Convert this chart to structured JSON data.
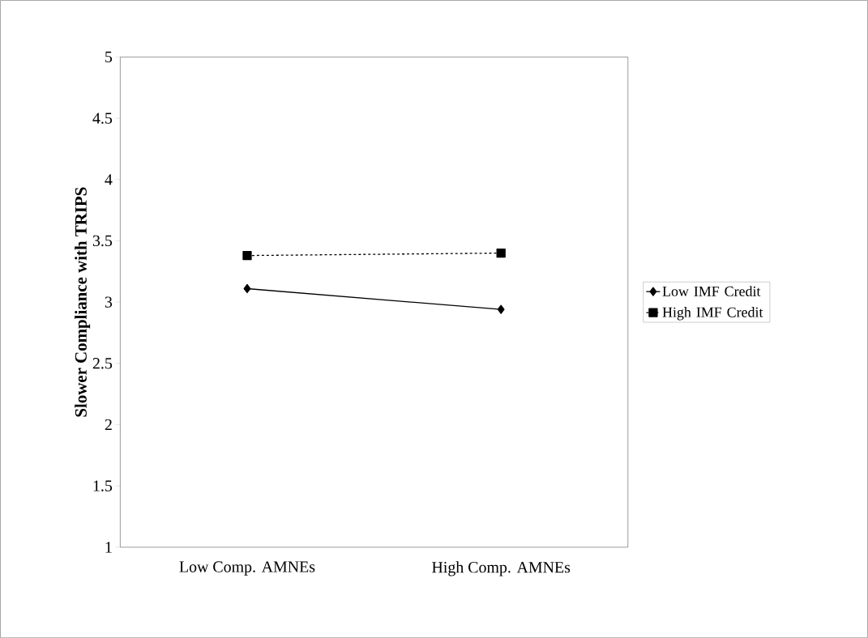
{
  "chart_data": {
    "type": "line",
    "ylabel": "Slower Compliance with TRIPS",
    "categories": [
      "Low Comp. AMNEs",
      "High Comp. AMNEs"
    ],
    "series": [
      {
        "name": "Low IMF Credit",
        "color": "#000000",
        "values": [
          3.11,
          2.94
        ],
        "marker": "diamond",
        "line_style": "solid"
      },
      {
        "name": "High IMF Credit",
        "color": "#000000",
        "values": [
          3.38,
          3.4
        ],
        "marker": "square",
        "line_style": "dashed"
      }
    ],
    "ylim": [
      1,
      5
    ],
    "yticks": [
      1,
      1.5,
      2,
      2.5,
      3,
      3.5,
      4,
      4.5,
      5
    ],
    "grid": false,
    "legend": "right"
  }
}
